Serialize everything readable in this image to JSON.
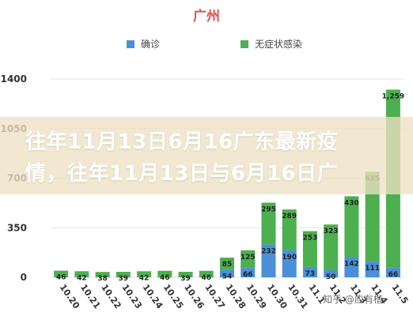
{
  "banner": {
    "line1": "往年11月13日6月16广东最新疫",
    "line2": "情，往年11月13日与6月16日广"
  },
  "watermark": "知乎 @应有楷",
  "colors": {
    "confirmed": "#4a90d9",
    "asymptomatic": "#4caf50",
    "title": "#d9534f",
    "grid": "#e2e2e2"
  },
  "chart_data": {
    "type": "bar",
    "stacked": true,
    "title": "广州",
    "xlabel": "",
    "ylabel": "",
    "ylim": [
      0,
      1400
    ],
    "yticks": [
      0,
      350,
      700,
      1050,
      1400
    ],
    "grid": true,
    "legend_position": "top",
    "categories": [
      "10.20",
      "10.21",
      "10.22",
      "10.23",
      "10.24",
      "10.25",
      "10.26",
      "10.27",
      "10.28",
      "10.29",
      "10.30",
      "10.31",
      "11.1",
      "11.2",
      "11.3",
      "11.4",
      "11.5"
    ],
    "series": [
      {
        "name": "确诊",
        "values": [
          1,
          1,
          0,
          0,
          1,
          0,
          0,
          0,
          54,
          66,
          232,
          190,
          73,
          50,
          142,
          111,
          66
        ],
        "labels": [
          "",
          "",
          "",
          "",
          "",
          "",
          "",
          "",
          "54",
          "66",
          "232",
          "190",
          "73",
          "50",
          "142",
          "111",
          "66"
        ]
      },
      {
        "name": "无症状感染",
        "values": [
          46,
          42,
          38,
          39,
          42,
          46,
          39,
          46,
          85,
          125,
          295,
          289,
          253,
          323,
          430,
          635,
          1259
        ],
        "labels": [
          "46",
          "42",
          "38",
          "39",
          "42",
          "46",
          "39",
          "46",
          "85",
          "125",
          "295",
          "289",
          "253",
          "323",
          "430",
          "635",
          "1,259"
        ]
      }
    ]
  }
}
